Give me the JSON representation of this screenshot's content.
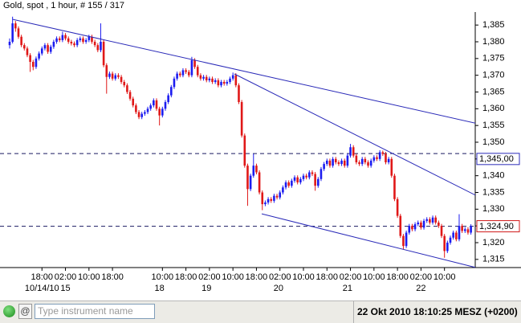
{
  "chart_data": {
    "type": "candlestick",
    "title": "Gold, spot , 1 hour, # 155 / 317",
    "up_color": "#1c1cf0",
    "down_color": "#e01818",
    "ylim": [
      1.3128,
      1.3884
    ],
    "yticks": [
      {
        "value": 1.315,
        "label": "1,315"
      },
      {
        "value": 1.32,
        "label": "1,320"
      },
      {
        "value": 1.325,
        "label": "1,325"
      },
      {
        "value": 1.33,
        "label": "1,330"
      },
      {
        "value": 1.335,
        "label": "1,335"
      },
      {
        "value": 1.34,
        "label": "1,340"
      },
      {
        "value": 1.345,
        "label": "1,345"
      },
      {
        "value": 1.35,
        "label": "1,350"
      },
      {
        "value": 1.355,
        "label": "1,355"
      },
      {
        "value": 1.36,
        "label": "1,360"
      },
      {
        "value": 1.365,
        "label": "1,365"
      },
      {
        "value": 1.37,
        "label": "1,370"
      },
      {
        "value": 1.375,
        "label": "1,375"
      },
      {
        "value": 1.38,
        "label": "1,380"
      },
      {
        "value": 1.385,
        "label": "1,385"
      }
    ],
    "xticks": [
      {
        "value": 11,
        "label": "18:00"
      },
      {
        "value": 19,
        "label": "02:00"
      },
      {
        "value": 27,
        "label": "10:00"
      },
      {
        "value": 35,
        "label": "18:00"
      },
      {
        "value": 52,
        "label": "10:00"
      },
      {
        "value": 60,
        "label": "18:00"
      },
      {
        "value": 68,
        "label": "02:00"
      },
      {
        "value": 76,
        "label": "10:00"
      },
      {
        "value": 84,
        "label": "18:00"
      },
      {
        "value": 92,
        "label": "02:00"
      },
      {
        "value": 100,
        "label": "10:00"
      },
      {
        "value": 108,
        "label": "18:00"
      },
      {
        "value": 116,
        "label": "02:00"
      },
      {
        "value": 124,
        "label": "10:00"
      },
      {
        "value": 132,
        "label": "18:00"
      },
      {
        "value": 140,
        "label": "02:00"
      },
      {
        "value": 148,
        "label": "10:00"
      }
    ],
    "date_labels": [
      {
        "value": 11,
        "label": "10/14/10"
      },
      {
        "value": 19,
        "label": "15"
      },
      {
        "value": 51,
        "label": "18"
      },
      {
        "value": 67,
        "label": "19"
      },
      {
        "value": 91.5,
        "label": "20"
      },
      {
        "value": 115,
        "label": "21"
      },
      {
        "value": 140,
        "label": "22"
      }
    ],
    "open": [
      1.379,
      1.38,
      1.3855,
      1.384,
      1.3815,
      1.379,
      1.378,
      1.376,
      1.374,
      1.3725,
      1.375,
      1.3765,
      1.378,
      1.379,
      1.377,
      1.3785,
      1.38,
      1.381,
      1.3805,
      1.382,
      1.381,
      1.38,
      1.3795,
      1.379,
      1.3805,
      1.381,
      1.38,
      1.3805,
      1.3815,
      1.38,
      1.379,
      1.3775,
      1.38,
      1.373,
      1.3695,
      1.3705,
      1.369,
      1.37,
      1.3695,
      1.368,
      1.367,
      1.365,
      1.363,
      1.361,
      1.359,
      1.3575,
      1.3585,
      1.359,
      1.36,
      1.361,
      1.3625,
      1.36,
      1.358,
      1.36,
      1.362,
      1.364,
      1.3665,
      1.369,
      1.3705,
      1.37,
      1.3715,
      1.371,
      1.37,
      1.3745,
      1.3725,
      1.37,
      1.369,
      1.3695,
      1.3685,
      1.369,
      1.368,
      1.3685,
      1.367,
      1.368,
      1.3675,
      1.368,
      1.369,
      1.37,
      1.367,
      1.362,
      1.352,
      1.343,
      1.336,
      1.34,
      1.343,
      1.341,
      1.335,
      1.3315,
      1.332,
      1.333,
      1.3325,
      1.334,
      1.3335,
      1.335,
      1.3365,
      1.338,
      1.337,
      1.3385,
      1.3395,
      1.338,
      1.339,
      1.34,
      1.3395,
      1.341,
      1.3405,
      1.337,
      1.339,
      1.342,
      1.3435,
      1.3445,
      1.343,
      1.345,
      1.344,
      1.3435,
      1.3445,
      1.343,
      1.346,
      1.3485,
      1.346,
      1.344,
      1.3435,
      1.345,
      1.344,
      1.343,
      1.3445,
      1.3455,
      1.345,
      1.347,
      1.3465,
      1.344,
      1.345,
      1.34,
      1.333,
      1.328,
      1.322,
      1.319,
      1.323,
      1.325,
      1.324,
      1.3255,
      1.326,
      1.3245,
      1.3265,
      1.327,
      1.326,
      1.3275,
      1.326,
      1.325,
      1.322,
      1.3175,
      1.32,
      1.3215,
      1.323,
      1.321,
      1.325,
      1.3235,
      1.324,
      1.323
    ],
    "high": [
      1.381,
      1.3875,
      1.3862,
      1.3846,
      1.3821,
      1.3796,
      1.3786,
      1.3766,
      1.3746,
      1.3756,
      1.3771,
      1.3786,
      1.3796,
      1.3796,
      1.3791,
      1.3806,
      1.3816,
      1.3816,
      1.383,
      1.3826,
      1.3816,
      1.3806,
      1.3801,
      1.3811,
      1.3816,
      1.3816,
      1.3811,
      1.3821,
      1.3821,
      1.3806,
      1.3796,
      1.3855,
      1.3806,
      1.3736,
      1.3711,
      1.3711,
      1.3706,
      1.3706,
      1.3701,
      1.3686,
      1.3676,
      1.3656,
      1.3636,
      1.3616,
      1.3596,
      1.3591,
      1.3596,
      1.3606,
      1.3616,
      1.3631,
      1.3631,
      1.3606,
      1.3606,
      1.3626,
      1.3646,
      1.3671,
      1.3696,
      1.3711,
      1.3711,
      1.3721,
      1.3721,
      1.3716,
      1.3755,
      1.3751,
      1.3731,
      1.3706,
      1.3701,
      1.3701,
      1.3696,
      1.3696,
      1.3691,
      1.3691,
      1.3686,
      1.3686,
      1.3686,
      1.3696,
      1.3708,
      1.3706,
      1.3676,
      1.3626,
      1.3526,
      1.3436,
      1.3406,
      1.3465,
      1.3436,
      1.3416,
      1.3356,
      1.3326,
      1.3336,
      1.3336,
      1.3346,
      1.3346,
      1.3356,
      1.3371,
      1.3386,
      1.3386,
      1.3391,
      1.3401,
      1.3401,
      1.3396,
      1.3406,
      1.3406,
      1.3416,
      1.3416,
      1.3411,
      1.3396,
      1.3426,
      1.3441,
      1.3451,
      1.3451,
      1.3456,
      1.3456,
      1.3446,
      1.3451,
      1.3451,
      1.3466,
      1.3495,
      1.3491,
      1.3466,
      1.3446,
      1.3456,
      1.3456,
      1.3446,
      1.3451,
      1.3461,
      1.3461,
      1.3476,
      1.3475,
      1.3471,
      1.3456,
      1.3456,
      1.3406,
      1.3336,
      1.3286,
      1.3226,
      1.3236,
      1.3256,
      1.3256,
      1.3261,
      1.3266,
      1.3266,
      1.3271,
      1.3276,
      1.3276,
      1.3281,
      1.3281,
      1.3266,
      1.3256,
      1.3226,
      1.3206,
      1.3221,
      1.3236,
      1.3236,
      1.3285,
      1.3256,
      1.3246,
      1.3246,
      1.3255
    ],
    "low": [
      1.378,
      1.3795,
      1.383,
      1.3809,
      1.3784,
      1.3774,
      1.3754,
      1.371,
      1.3715,
      1.3719,
      1.3744,
      1.3759,
      1.3774,
      1.3764,
      1.3764,
      1.3779,
      1.3794,
      1.3799,
      1.3799,
      1.3804,
      1.3794,
      1.3789,
      1.3784,
      1.3784,
      1.3799,
      1.3794,
      1.3794,
      1.3799,
      1.3794,
      1.3784,
      1.3769,
      1.3769,
      1.3724,
      1.3645,
      1.3689,
      1.3684,
      1.3684,
      1.3689,
      1.3674,
      1.3664,
      1.3644,
      1.3624,
      1.3604,
      1.3584,
      1.3569,
      1.3569,
      1.3579,
      1.3584,
      1.3594,
      1.3604,
      1.3594,
      1.355,
      1.3574,
      1.3594,
      1.3614,
      1.3634,
      1.3659,
      1.3684,
      1.3694,
      1.3694,
      1.3704,
      1.3694,
      1.3694,
      1.3719,
      1.3694,
      1.3684,
      1.3684,
      1.3679,
      1.3679,
      1.3674,
      1.3674,
      1.3664,
      1.3664,
      1.3669,
      1.3669,
      1.3674,
      1.3684,
      1.3664,
      1.3614,
      1.3514,
      1.3424,
      1.331,
      1.3354,
      1.3394,
      1.3404,
      1.3344,
      1.3297,
      1.3309,
      1.3314,
      1.3319,
      1.3319,
      1.3329,
      1.3329,
      1.3344,
      1.3359,
      1.3364,
      1.3364,
      1.3379,
      1.3374,
      1.3374,
      1.3384,
      1.3389,
      1.3389,
      1.3399,
      1.3355,
      1.3364,
      1.3384,
      1.3414,
      1.3429,
      1.3424,
      1.3424,
      1.3434,
      1.3429,
      1.3429,
      1.3424,
      1.3424,
      1.3454,
      1.3454,
      1.3434,
      1.3429,
      1.3429,
      1.3434,
      1.3424,
      1.3424,
      1.3439,
      1.3444,
      1.3444,
      1.3459,
      1.3434,
      1.3434,
      1.3394,
      1.3324,
      1.3274,
      1.3214,
      1.318,
      1.3184,
      1.3224,
      1.3234,
      1.3234,
      1.3249,
      1.3239,
      1.3239,
      1.3259,
      1.3254,
      1.3254,
      1.3254,
      1.3244,
      1.3214,
      1.3155,
      1.3169,
      1.3194,
      1.3209,
      1.3204,
      1.3204,
      1.3229,
      1.3229,
      1.3224,
      1.3224
    ],
    "close": [
      1.38,
      1.3855,
      1.384,
      1.3815,
      1.379,
      1.378,
      1.376,
      1.374,
      1.3725,
      1.375,
      1.3765,
      1.378,
      1.379,
      1.377,
      1.3785,
      1.38,
      1.381,
      1.3805,
      1.382,
      1.381,
      1.38,
      1.3795,
      1.379,
      1.3805,
      1.381,
      1.38,
      1.3805,
      1.3815,
      1.38,
      1.379,
      1.3775,
      1.38,
      1.373,
      1.3695,
      1.3705,
      1.369,
      1.37,
      1.3695,
      1.368,
      1.367,
      1.365,
      1.363,
      1.361,
      1.359,
      1.3575,
      1.3585,
      1.359,
      1.36,
      1.361,
      1.3625,
      1.36,
      1.358,
      1.36,
      1.362,
      1.364,
      1.3665,
      1.369,
      1.3705,
      1.37,
      1.3715,
      1.371,
      1.37,
      1.3745,
      1.3725,
      1.37,
      1.369,
      1.3695,
      1.3685,
      1.369,
      1.368,
      1.3685,
      1.367,
      1.368,
      1.3675,
      1.368,
      1.369,
      1.37,
      1.367,
      1.362,
      1.352,
      1.343,
      1.336,
      1.34,
      1.343,
      1.341,
      1.335,
      1.3315,
      1.332,
      1.333,
      1.3325,
      1.334,
      1.3335,
      1.335,
      1.3365,
      1.338,
      1.337,
      1.3385,
      1.3395,
      1.338,
      1.339,
      1.34,
      1.3395,
      1.341,
      1.3405,
      1.337,
      1.339,
      1.342,
      1.3435,
      1.3445,
      1.343,
      1.345,
      1.344,
      1.3435,
      1.3445,
      1.343,
      1.346,
      1.3485,
      1.346,
      1.344,
      1.3435,
      1.345,
      1.344,
      1.343,
      1.3445,
      1.3455,
      1.345,
      1.347,
      1.3465,
      1.344,
      1.345,
      1.34,
      1.333,
      1.328,
      1.322,
      1.319,
      1.323,
      1.325,
      1.324,
      1.3255,
      1.326,
      1.3245,
      1.3265,
      1.327,
      1.326,
      1.3275,
      1.326,
      1.325,
      1.322,
      1.3175,
      1.32,
      1.3215,
      1.323,
      1.321,
      1.325,
      1.3235,
      1.324,
      1.323,
      1.3249
    ],
    "trendline_color": "#2a2ab8",
    "trendlines": [
      {
        "x": [
          1.1,
          158.5
        ],
        "y": [
          1.3867,
          1.3557
        ]
      },
      {
        "x": [
          76.5,
          158.5
        ],
        "y": [
          1.3704,
          1.3342
        ]
      },
      {
        "x": [
          85.8,
          158.5
        ],
        "y": [
          1.3286,
          1.3126
        ]
      }
    ],
    "hlines": [
      {
        "value": 1.3466,
        "color": "#1a1a60"
      },
      {
        "value": 1.3249,
        "color": "#1a1a60"
      }
    ],
    "price_boxes": [
      {
        "value": 1.345,
        "label": "1,345,00",
        "color": "#2a2ab8"
      },
      {
        "value": 1.3249,
        "label": "1,324,90",
        "color": "#d01818"
      }
    ]
  },
  "status_bar": {
    "placeholder": "Type instrument name",
    "datetime": "22 Okt 2010 18:10:25 MESZ (+0200)"
  }
}
